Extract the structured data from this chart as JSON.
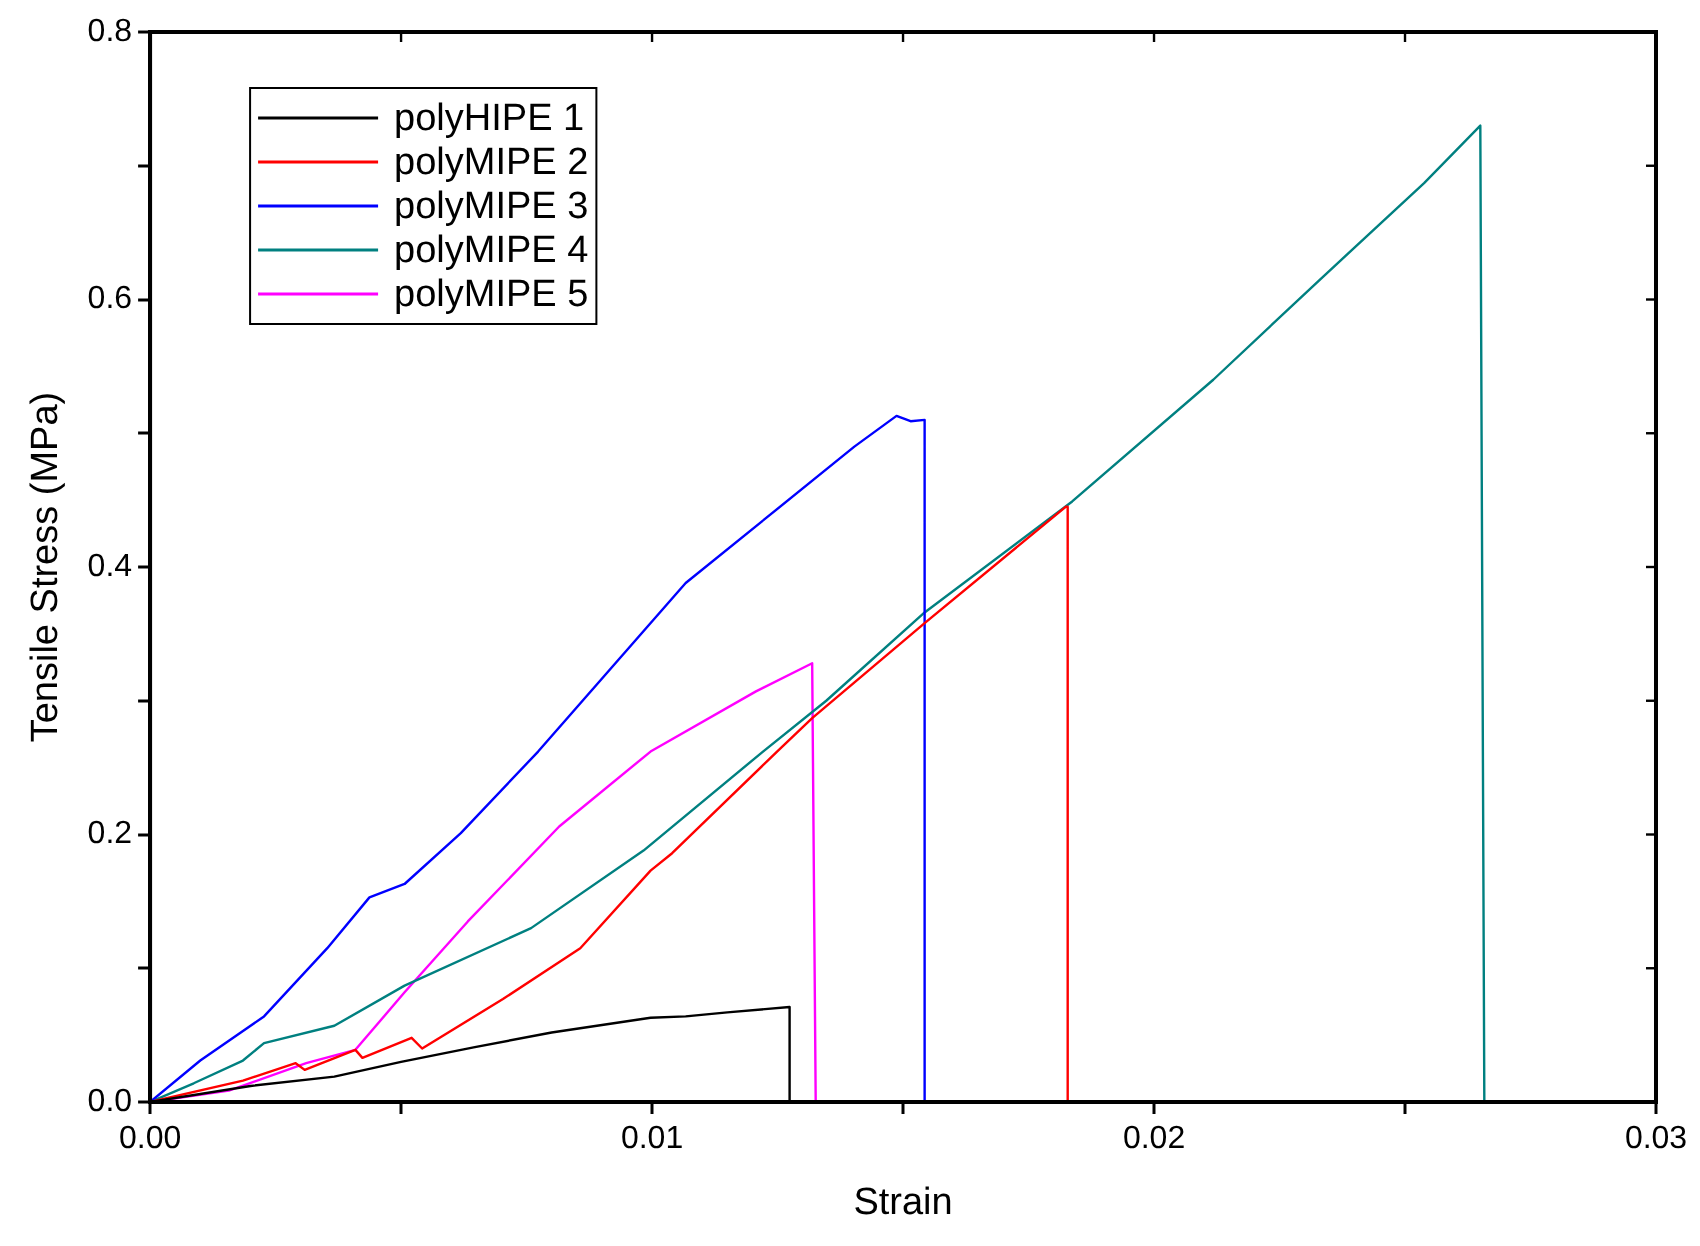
{
  "chart_data": {
    "type": "line",
    "xlabel": "Strain",
    "ylabel": "Tensile Stress (MPa)",
    "xlim": [
      0,
      0.03
    ],
    "ylim": [
      0,
      0.8
    ],
    "xticks": [
      {
        "value": 0,
        "label": "0.00"
      },
      {
        "value": 0.005,
        "label": null
      },
      {
        "value": 0.01,
        "label": "0.01"
      },
      {
        "value": 0.015,
        "label": null
      },
      {
        "value": 0.02,
        "label": "0.02"
      },
      {
        "value": 0.025,
        "label": null
      },
      {
        "value": 0.03,
        "label": "0.03"
      }
    ],
    "yticks": [
      {
        "value": 0,
        "label": "0.0"
      },
      {
        "value": 0.1,
        "label": null
      },
      {
        "value": 0.2,
        "label": "0.2"
      },
      {
        "value": 0.3,
        "label": null
      },
      {
        "value": 0.4,
        "label": "0.4"
      },
      {
        "value": 0.5,
        "label": null
      },
      {
        "value": 0.6,
        "label": "0.6"
      },
      {
        "value": 0.7,
        "label": null
      },
      {
        "value": 0.8,
        "label": "0.8"
      }
    ],
    "grid": false,
    "legend": "top left",
    "marker": "none",
    "line_style": "solid",
    "series": [
      {
        "name": "polyHIPE 1",
        "color": "#000000",
        "x": [
          0,
          0.002,
          0.00367,
          0.005,
          0.00647,
          0.008,
          0.00997,
          0.01067,
          0.0115,
          0.01274,
          0.01274
        ],
        "values": [
          0,
          0.012,
          0.019,
          0.03,
          0.041,
          0.052,
          0.063,
          0.064,
          0.067,
          0.071,
          0
        ]
      },
      {
        "name": "polyMIPE 2",
        "color": "#ff0000",
        "x": [
          0,
          0.00185,
          0.0029,
          0.00308,
          0.00409,
          0.00423,
          0.00521,
          0.00542,
          0.00703,
          0.00857,
          0.00997,
          0.0104,
          0.01249,
          0.01319,
          0.01543,
          0.01824,
          0.01828,
          0.01828
        ],
        "values": [
          0,
          0.016,
          0.029,
          0.024,
          0.039,
          0.033,
          0.048,
          0.04,
          0.077,
          0.115,
          0.173,
          0.186,
          0.262,
          0.287,
          0.358,
          0.445,
          0.445,
          0
        ]
      },
      {
        "name": "polyMIPE 3",
        "color": "#0000ff",
        "x": [
          0,
          0.001,
          0.00227,
          0.00353,
          0.00437,
          0.00507,
          0.00619,
          0.00773,
          0.01067,
          0.01403,
          0.01487,
          0.01515,
          0.01543,
          0.01543
        ],
        "values": [
          0,
          0.031,
          0.064,
          0.115,
          0.153,
          0.163,
          0.201,
          0.262,
          0.388,
          0.49,
          0.513,
          0.509,
          0.51,
          0
        ]
      },
      {
        "name": "polyMIPE 4",
        "color": "#008080",
        "x": [
          0,
          0.00087,
          0.00185,
          0.00227,
          0.00367,
          0.00507,
          0.00759,
          0.00983,
          0.01221,
          0.01347,
          0.01543,
          0.01837,
          0.02118,
          0.02328,
          0.02538,
          0.0265,
          0.02658
        ],
        "values": [
          0,
          0.014,
          0.031,
          0.044,
          0.057,
          0.087,
          0.13,
          0.188,
          0.262,
          0.3,
          0.366,
          0.449,
          0.54,
          0.614,
          0.687,
          0.73,
          0
        ]
      },
      {
        "name": "polyMIPE 5",
        "color": "#ff00ff",
        "x": [
          0,
          0.00157,
          0.00311,
          0.00409,
          0.00507,
          0.00633,
          0.00815,
          0.00997,
          0.01207,
          0.01319,
          0.01326
        ],
        "values": [
          0,
          0.0085,
          0.029,
          0.039,
          0.082,
          0.135,
          0.206,
          0.262,
          0.307,
          0.328,
          0
        ]
      }
    ]
  }
}
